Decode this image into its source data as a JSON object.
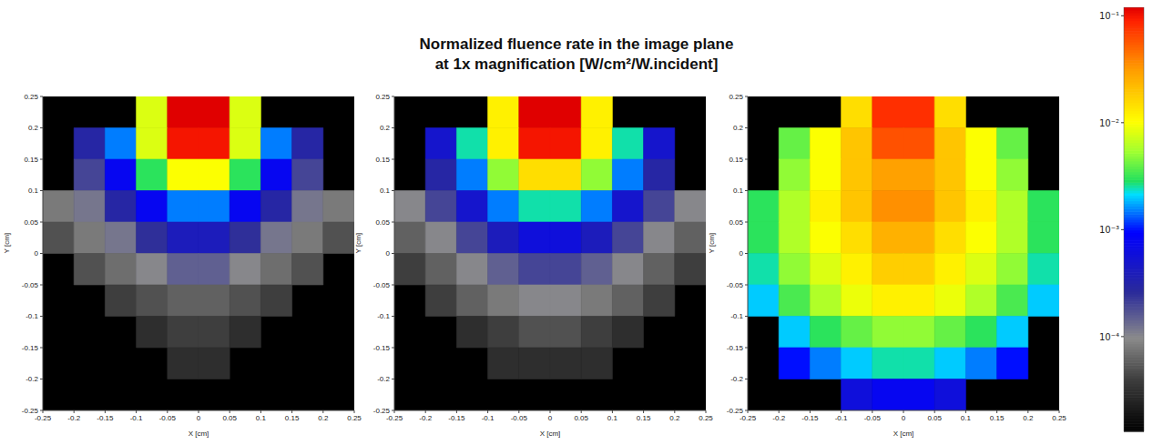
{
  "title": "Normalized fluence rate in the image plane",
  "subtitle": "at 1x magnification [W/cm²/W.incident]",
  "colorbar": {
    "range": [
      1.3e-05,
      0.12
    ],
    "log": true,
    "ticks": [
      {
        "value": 0.0001,
        "label": "10⁻⁴"
      },
      {
        "value": 0.001,
        "label": "10⁻³"
      },
      {
        "value": 0.01,
        "label": "10⁻²"
      },
      {
        "value": 0.1,
        "label": "10⁻¹"
      }
    ]
  },
  "chart_data": [
    {
      "type": "heatmap",
      "xlabel": "X [cm]",
      "ylabel": "Y [cm]",
      "xlim": [
        -0.25,
        0.25
      ],
      "ylim": [
        -0.25,
        0.25
      ],
      "xticks": [
        -0.25,
        -0.2,
        -0.15,
        -0.1,
        -0.05,
        0,
        0.05,
        0.1,
        0.15,
        0.2,
        0.25
      ],
      "yticks": [
        -0.25,
        -0.2,
        -0.15,
        -0.1,
        -0.05,
        0,
        0.05,
        0.1,
        0.15,
        0.2,
        0.25
      ],
      "x_edges": [
        -0.25,
        -0.2,
        -0.15,
        -0.1,
        -0.05,
        0,
        0.05,
        0.1,
        0.15,
        0.2,
        0.25
      ],
      "y_edges": [
        0.25,
        0.2,
        0.15,
        0.1,
        0.05,
        0,
        -0.05,
        -0.1,
        -0.15,
        -0.2,
        -0.25
      ],
      "cells": [
        [
          null,
          null,
          null,
          0.008,
          0.12,
          0.12,
          0.008,
          null,
          null,
          null
        ],
        [
          null,
          0.0003,
          0.0015,
          0.008,
          0.1,
          0.1,
          0.008,
          0.0015,
          0.0003,
          null
        ],
        [
          null,
          0.0002,
          0.0008,
          0.003,
          0.01,
          0.01,
          0.003,
          0.0008,
          0.0002,
          null
        ],
        [
          8e-05,
          0.00012,
          0.0003,
          0.0008,
          0.0015,
          0.0015,
          0.0008,
          0.0003,
          0.00012,
          8e-05
        ],
        [
          5e-05,
          8e-05,
          0.00012,
          0.00025,
          0.0004,
          0.0004,
          0.00025,
          0.00012,
          8e-05,
          5e-05
        ],
        [
          null,
          5e-05,
          7e-05,
          0.0001,
          0.00015,
          0.00015,
          0.0001,
          7e-05,
          5e-05,
          null
        ],
        [
          null,
          null,
          4e-05,
          5e-05,
          6e-05,
          6e-05,
          5e-05,
          4e-05,
          null,
          null
        ],
        [
          null,
          null,
          null,
          3e-05,
          4e-05,
          4e-05,
          3e-05,
          null,
          null,
          null
        ],
        [
          null,
          null,
          null,
          null,
          3e-05,
          3e-05,
          null,
          null,
          null,
          null
        ],
        [
          null,
          null,
          null,
          null,
          null,
          null,
          null,
          null,
          null,
          null
        ]
      ]
    },
    {
      "type": "heatmap",
      "xlabel": "X [cm]",
      "ylabel": "Y [cm]",
      "xlim": [
        -0.25,
        0.25
      ],
      "ylim": [
        -0.25,
        0.25
      ],
      "xticks": [
        -0.25,
        -0.2,
        -0.15,
        -0.1,
        -0.05,
        0,
        0.05,
        0.1,
        0.15,
        0.2,
        0.25
      ],
      "yticks": [
        -0.25,
        -0.2,
        -0.15,
        -0.1,
        -0.05,
        0,
        0.05,
        0.1,
        0.15,
        0.2,
        0.25
      ],
      "x_edges": [
        -0.25,
        -0.2,
        -0.15,
        -0.1,
        -0.05,
        0,
        0.05,
        0.1,
        0.15,
        0.2,
        0.25
      ],
      "y_edges": [
        0.25,
        0.2,
        0.15,
        0.1,
        0.05,
        0,
        -0.05,
        -0.1,
        -0.15,
        -0.2,
        -0.25
      ],
      "cells": [
        [
          null,
          null,
          null,
          0.012,
          0.12,
          0.12,
          0.012,
          null,
          null,
          null
        ],
        [
          null,
          0.0005,
          0.0025,
          0.012,
          0.1,
          0.1,
          0.012,
          0.0025,
          0.0005,
          null
        ],
        [
          null,
          0.0003,
          0.0015,
          0.005,
          0.015,
          0.015,
          0.005,
          0.0015,
          0.0003,
          null
        ],
        [
          0.0001,
          0.0002,
          0.0005,
          0.0015,
          0.0025,
          0.0025,
          0.0015,
          0.0005,
          0.0002,
          0.0001
        ],
        [
          6e-05,
          0.0001,
          0.0002,
          0.0004,
          0.0006,
          0.0006,
          0.0004,
          0.0002,
          0.0001,
          6e-05
        ],
        [
          4e-05,
          6e-05,
          0.0001,
          0.00015,
          0.0002,
          0.0002,
          0.00015,
          0.0001,
          6e-05,
          4e-05
        ],
        [
          null,
          4e-05,
          6e-05,
          8e-05,
          0.0001,
          0.0001,
          8e-05,
          6e-05,
          4e-05,
          null
        ],
        [
          null,
          null,
          3e-05,
          4e-05,
          5e-05,
          5e-05,
          4e-05,
          3e-05,
          null,
          null
        ],
        [
          null,
          null,
          null,
          3e-05,
          3e-05,
          3e-05,
          3e-05,
          null,
          null,
          null
        ],
        [
          null,
          null,
          null,
          null,
          null,
          null,
          null,
          null,
          null,
          null
        ]
      ]
    },
    {
      "type": "heatmap",
      "xlabel": "X [cm]",
      "ylabel": "Y [cm]",
      "xlim": [
        -0.25,
        0.25
      ],
      "ylim": [
        -0.25,
        0.25
      ],
      "xticks": [
        -0.25,
        -0.2,
        -0.15,
        -0.1,
        -0.05,
        0,
        0.05,
        0.1,
        0.15,
        0.2,
        0.25
      ],
      "yticks": [
        -0.25,
        -0.2,
        -0.15,
        -0.1,
        -0.05,
        0,
        0.05,
        0.1,
        0.15,
        0.2,
        0.25
      ],
      "x_edges": [
        -0.25,
        -0.2,
        -0.15,
        -0.1,
        -0.05,
        0,
        0.05,
        0.1,
        0.15,
        0.2,
        0.25
      ],
      "y_edges": [
        0.25,
        0.2,
        0.15,
        0.1,
        0.05,
        0,
        -0.05,
        -0.1,
        -0.15,
        -0.2,
        -0.25
      ],
      "cells": [
        [
          null,
          null,
          null,
          0.015,
          0.08,
          0.08,
          0.015,
          null,
          null,
          null
        ],
        [
          null,
          0.004,
          0.01,
          0.02,
          0.06,
          0.06,
          0.02,
          0.01,
          0.004,
          null
        ],
        [
          null,
          0.005,
          0.01,
          0.02,
          0.03,
          0.03,
          0.02,
          0.01,
          0.005,
          null
        ],
        [
          0.003,
          0.006,
          0.012,
          0.02,
          0.035,
          0.035,
          0.02,
          0.012,
          0.006,
          0.003
        ],
        [
          0.003,
          0.006,
          0.01,
          0.015,
          0.025,
          0.025,
          0.015,
          0.01,
          0.006,
          0.003
        ],
        [
          0.0025,
          0.005,
          0.008,
          0.012,
          0.018,
          0.018,
          0.012,
          0.008,
          0.005,
          0.0025
        ],
        [
          0.002,
          0.0035,
          0.006,
          0.009,
          0.012,
          0.012,
          0.009,
          0.006,
          0.0035,
          0.002
        ],
        [
          null,
          0.002,
          0.003,
          0.004,
          0.005,
          0.005,
          0.004,
          0.003,
          0.002,
          null
        ],
        [
          null,
          0.001,
          0.0015,
          0.002,
          0.0025,
          0.0025,
          0.002,
          0.0015,
          0.001,
          null
        ],
        [
          null,
          null,
          null,
          0.0006,
          0.0008,
          0.0008,
          0.0006,
          null,
          null,
          null
        ]
      ]
    }
  ]
}
